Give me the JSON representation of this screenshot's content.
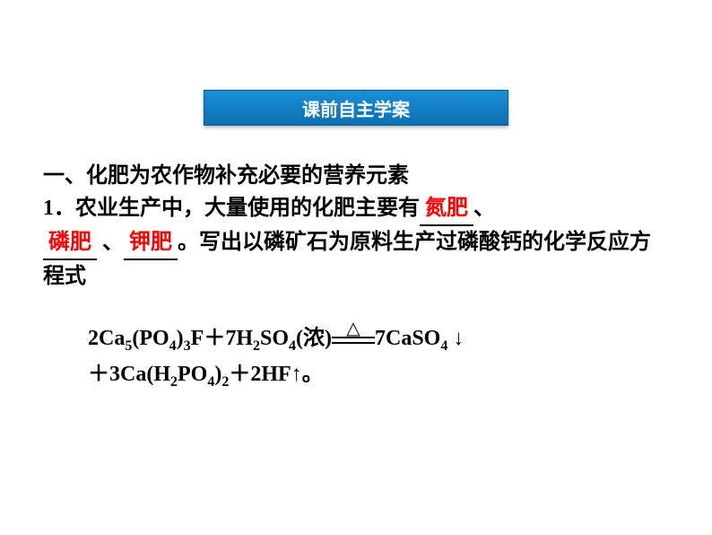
{
  "title": "课前自主学案",
  "heading": "一、化肥为农作物补充必要的营养元素",
  "para_prefix": "1．农业生产中，大量使用的化肥主要有",
  "blank1": "氮肥",
  "sep1": "、",
  "blank2": "磷肥",
  "sep2": "、",
  "blank3": "钾肥",
  "para_suffix": "。写出以磷矿石为原料生产过磷酸钙的化学反应方程式",
  "equation_line1_a": "2Ca",
  "equation_line1_b": "(PO",
  "equation_line1_c": ")",
  "equation_line1_d": "F＋7H",
  "equation_line1_e": "SO",
  "equation_line1_f": "(浓)",
  "equation_line1_g": "7CaSO",
  "equation_line1_h": "↓",
  "equation_line2_a": "＋3Ca(H",
  "equation_line2_b": "PO",
  "equation_line2_c": ")",
  "equation_line2_d": "＋2HF↑。",
  "sub5": "5",
  "sub4": "4",
  "sub3": "3",
  "sub2": "2",
  "triangle": "△",
  "colors": {
    "title_bg_top": "#1a8fd8",
    "title_bg_bottom": "#0d6fb3",
    "title_text": "#ffffff",
    "body_text": "#000000",
    "highlight": "#ff0000",
    "background": "#ffffff"
  },
  "fontsize": {
    "title": 20,
    "body": 24,
    "sub": 16
  }
}
